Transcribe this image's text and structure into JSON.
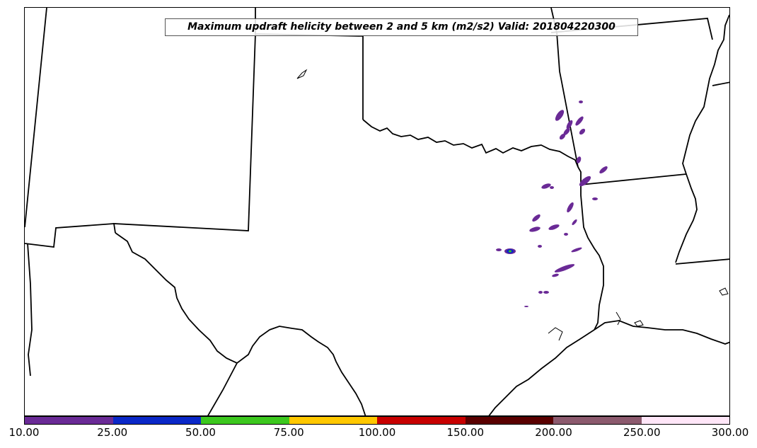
{
  "title": "Maximum updraft helicity between 2 and 5 km (m2/s2) Valid: 201804220300",
  "colorbar": {
    "colors": [
      "#6a2a96",
      "#0a28c8",
      "#3cc81e",
      "#ffc800",
      "#c80000",
      "#5a0000",
      "#8c5a6e",
      "#ffe6f8"
    ],
    "labels": [
      "10.00",
      "25.00",
      "50.00",
      "75.00",
      "100.00",
      "150.00",
      "200.00",
      "250.00",
      "300.00"
    ]
  },
  "storm_color": "#6a2a96"
}
